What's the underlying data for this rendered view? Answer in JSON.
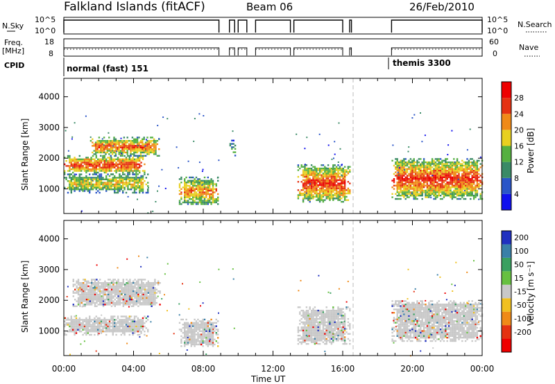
{
  "header": {
    "station": "Falkland Islands (fitACF)",
    "beam": "Beam 06",
    "date": "26/Feb/2010"
  },
  "params": {
    "nsky_label": "N.Sky",
    "nsky_ticks": [
      "10^5",
      "10^0"
    ],
    "nsearch_label": "N.Search",
    "nsearch_ticks": [
      "10^5",
      "10^0"
    ],
    "freq_label": "Freq.",
    "freq_unit": "[MHz]",
    "freq_ticks": [
      "18",
      "8"
    ],
    "nave_label": "Nave",
    "nave_ticks": [
      "60",
      "0"
    ],
    "cpid_label": "CPID",
    "cpid_modes": [
      {
        "name": "normal (fast) 151",
        "start_hour": 0,
        "end_hour": 18.6
      },
      {
        "name": "themis 3300",
        "start_hour": 18.6,
        "end_hour": 24
      }
    ]
  },
  "axes": {
    "x_ticks": [
      "00:00",
      "04:00",
      "08:00",
      "12:00",
      "16:00",
      "20:00",
      "00:00"
    ],
    "xlabel": "Time UT",
    "y_ticks": [
      "1000",
      "2000",
      "3000",
      "4000"
    ],
    "ylabel": "Slant Range [km]"
  },
  "power_scale": {
    "label": "Power [dB]",
    "ticks": [
      "4",
      "8",
      "12",
      "16",
      "20",
      "24",
      "28"
    ],
    "colors": [
      "#1010ee",
      "#2a55c8",
      "#3a8a66",
      "#55b040",
      "#e8d020",
      "#f08a18",
      "#e53212",
      "#ee0000"
    ]
  },
  "velocity_scale": {
    "label": "Velocity [m s⁻¹]",
    "ticks": [
      "200",
      "100",
      "50",
      "15",
      "-15",
      "-50",
      "-100",
      "-200"
    ],
    "colors": [
      "#2030c0",
      "#3a80a8",
      "#3aa060",
      "#66c040",
      "#c8c8c8",
      "#f0c020",
      "#f08a18",
      "#e53212",
      "#ee0000"
    ]
  },
  "chart_data": {
    "type": "heatmap",
    "title": "Falkland Islands (fitACF)",
    "xlabel": "Time UT",
    "ylabel": "Slant Range [km]",
    "xlim": [
      0,
      24
    ],
    "ylim": [
      200,
      4600
    ],
    "panels": [
      {
        "quantity": "Power [dB]",
        "cbar_range": [
          0,
          30
        ],
        "echo_regions": [
          {
            "t0": 0.0,
            "t1": 4.6,
            "r0": 1500,
            "r1": 2100,
            "level": 26
          },
          {
            "t0": 1.5,
            "t1": 5.5,
            "r0": 2100,
            "r1": 2700,
            "level": 24
          },
          {
            "t0": 0.0,
            "t1": 4.8,
            "r0": 900,
            "r1": 1500,
            "level": 18
          },
          {
            "t0": 6.6,
            "t1": 8.8,
            "r0": 500,
            "r1": 1400,
            "level": 22
          },
          {
            "t0": 9.5,
            "t1": 9.8,
            "r0": 2100,
            "r1": 2600,
            "level": 12
          },
          {
            "t0": 13.4,
            "t1": 16.4,
            "r0": 600,
            "r1": 1800,
            "level": 26
          },
          {
            "t0": 18.8,
            "t1": 24.0,
            "r0": 700,
            "r1": 2000,
            "level": 26
          }
        ]
      },
      {
        "quantity": "Velocity [m s⁻¹]",
        "cbar_range": [
          -250,
          250
        ],
        "echo_regions": [
          {
            "t0": 0.5,
            "t1": 5.5,
            "r0": 1800,
            "r1": 2700,
            "level": 0
          },
          {
            "t0": 0.0,
            "t1": 4.8,
            "r0": 900,
            "r1": 1500,
            "level": 0
          },
          {
            "t0": 6.6,
            "t1": 8.8,
            "r0": 500,
            "r1": 1400,
            "level": 0
          },
          {
            "t0": 13.4,
            "t1": 16.4,
            "r0": 600,
            "r1": 1800,
            "level": 0
          },
          {
            "t0": 18.8,
            "t1": 24.0,
            "r0": 700,
            "r1": 2000,
            "level": 0
          }
        ]
      }
    ],
    "data_gaps_hours": [
      [
        8.9,
        9.5
      ],
      [
        9.8,
        13.3
      ],
      [
        16.4,
        18.8
      ]
    ],
    "grid": false
  }
}
